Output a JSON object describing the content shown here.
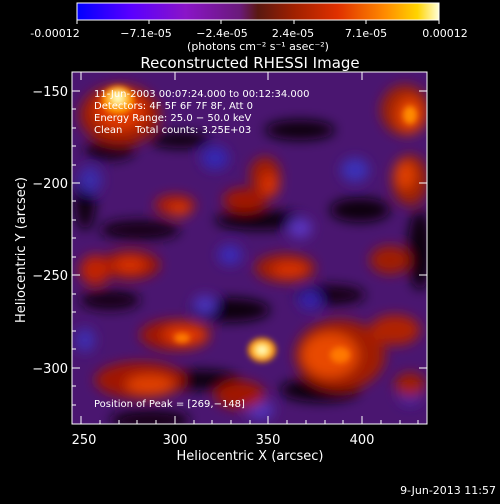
{
  "colorbar": {
    "tick_labels": [
      "-0.00012",
      "−7.1e-05",
      "−2.4e-05",
      "2.4e-05",
      "7.1e-05",
      "0.00012"
    ],
    "unit_label": "(photons cm⁻² s⁻¹ asec⁻²)",
    "colors": [
      "#0000ff",
      "#5a00ff",
      "#8a14c8",
      "#6a1a7a",
      "#8a2010",
      "#e03000",
      "#ff7a00",
      "#ffd400",
      "#ffffc8"
    ]
  },
  "plot": {
    "title": "Reconstructed RHESSI Image",
    "info_lines": [
      "11-Jun-2003 00:07:24.000 to 00:12:34.000",
      "Detectors: 4F 5F 6F 7F 8F, Att 0",
      "Energy Range: 25.0 − 50.0 keV",
      "Clean    Total counts: 3.25E+03"
    ],
    "peak_label": "Position of Peak = [269,−148]",
    "x_axis": {
      "label": "Heliocentric X (arcsec)",
      "range": [
        245,
        435
      ],
      "ticks": [
        "250",
        "300",
        "350",
        "400"
      ]
    },
    "y_axis": {
      "label": "Heliocentric Y (arcsec)",
      "range": [
        -330,
        -140
      ],
      "ticks": [
        "−150",
        "−200",
        "−250",
        "−300"
      ]
    }
  },
  "footer": {
    "timestamp": "9-Jun-2013 11:57"
  }
}
